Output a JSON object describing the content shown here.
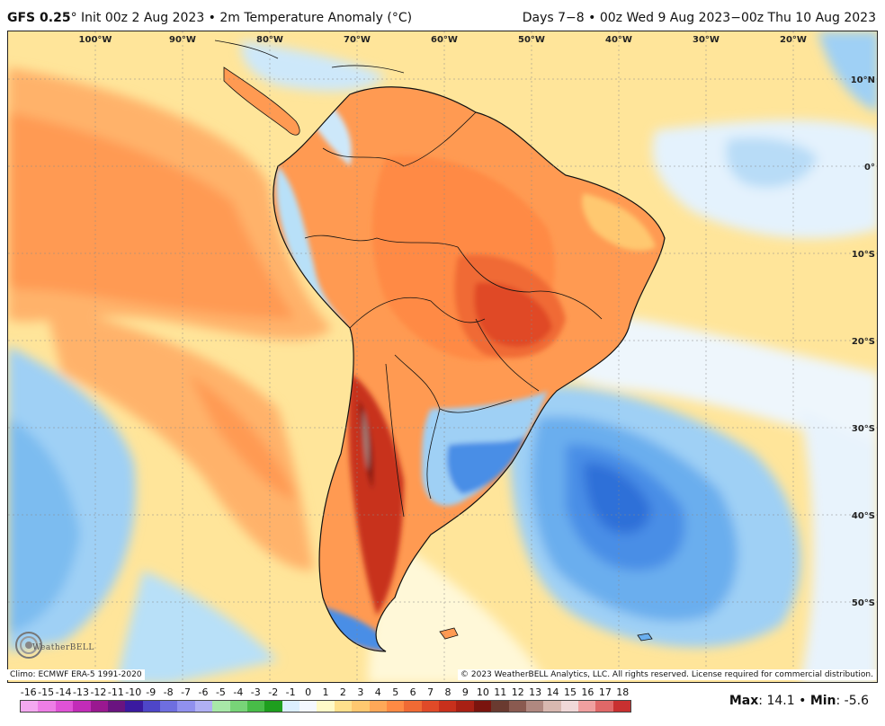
{
  "header": {
    "model": "GFS 0.25",
    "degree": "°",
    "init": " Init 00z 2 Aug 2023 • 2m Temperature Anomaly (°C)",
    "valid": "Days 7−8 • 00z Wed 9 Aug 2023−00z Thu 10 Aug 2023"
  },
  "map": {
    "longitude_labels": [
      "100°W",
      "90°W",
      "80°W",
      "70°W",
      "60°W",
      "50°W",
      "40°W",
      "30°W",
      "20°W"
    ],
    "latitude_labels": [
      "10°N",
      "0°",
      "10°S",
      "20°S",
      "30°S",
      "40°S",
      "50°S"
    ]
  },
  "credits": {
    "climo": "Climo: ECMWF ERA-5 1991-2020",
    "copyright": "© 2023 WeatherBELL Analytics, LLC. All rights reserved. License required for commercial distribution.",
    "logo_text": "WeatherBELL"
  },
  "legend": {
    "ticks": [
      "-16",
      "-15",
      "-14",
      "-13",
      "-12",
      "-11",
      "-10",
      "-9",
      "-8",
      "-7",
      "-6",
      "-5",
      "-4",
      "-3",
      "-2",
      "-1",
      "0",
      "1",
      "2",
      "3",
      "4",
      "5",
      "6",
      "7",
      "8",
      "9",
      "10",
      "11",
      "12",
      "13",
      "14",
      "15",
      "16",
      "17",
      "18"
    ],
    "colors": [
      "#f4a8f0",
      "#ee7ee6",
      "#e052d6",
      "#c22cb8",
      "#9a1890",
      "#6a1480",
      "#3a1aa0",
      "#4e46c8",
      "#6e6ee0",
      "#9090ee",
      "#b0b0f4",
      "#a8e8a8",
      "#78d478",
      "#48bc48",
      "#1e9e1e",
      "#dcefff",
      "#f4f8ff",
      "#fffac8",
      "#ffe08c",
      "#ffc870",
      "#ffa858",
      "#ff8a44",
      "#f06a34",
      "#e04a28",
      "#c8301c",
      "#a82014",
      "#7a140e",
      "#6a3a30",
      "#8a5a50",
      "#b08880",
      "#d8b8b0",
      "#f0d8d8",
      "#f0a0a0",
      "#e06868",
      "#c83030"
    ],
    "max_label": "Max",
    "max_value": ": 14.1",
    "sep": " • ",
    "min_label": "Min",
    "min_value": ": -5.6"
  }
}
